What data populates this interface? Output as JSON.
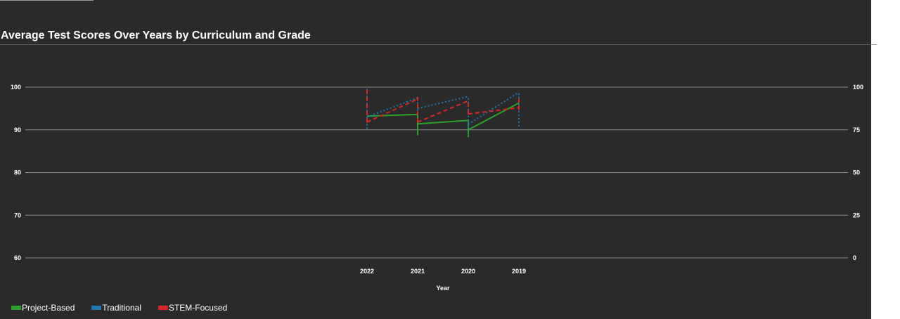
{
  "chart_data": {
    "type": "line",
    "title": "Average Test Scores Over Years by Curriculum and Grade",
    "xlabel": "Year",
    "ylabel": "",
    "y2label": "",
    "categories": [
      "2022",
      "2021",
      "2020",
      "2019"
    ],
    "ylim": [
      60,
      100
    ],
    "y2lim": [
      0,
      100
    ],
    "y_ticks": [
      "100",
      "90",
      "80",
      "70",
      "60"
    ],
    "y2_ticks": [
      "100",
      "75",
      "50",
      "25",
      "0"
    ],
    "grid": true,
    "legend_position": "bottom-left",
    "series": [
      {
        "name": "Project-Based",
        "color": "#2ca02c",
        "line_style": "solid",
        "values": [
          93.2,
          93.6,
          92.2,
          96.3
        ],
        "error_bars": [
          [
            93.2,
            93.2
          ],
          [
            88.7,
            93.6
          ],
          [
            88.3,
            92.2
          ],
          [
            96.3,
            96.3
          ]
        ],
        "segments": [
          [
            [
              0,
              93.2
            ],
            [
              1,
              93.6
            ]
          ],
          [
            [
              1,
              91.4
            ],
            [
              2,
              92.2
            ]
          ],
          [
            [
              2,
              90.0
            ],
            [
              3,
              96.3
            ]
          ]
        ]
      },
      {
        "name": "Traditional",
        "color": "#1f77b4",
        "line_style": "dotted",
        "values": [
          93.0,
          97.5,
          97.8,
          98.8
        ],
        "error_bars": [
          [
            90.2,
            100
          ],
          [
            94.5,
            97.5
          ],
          [
            90.5,
            97.8
          ],
          [
            90.8,
            98.8
          ]
        ],
        "segments": [
          [
            [
              0,
              93.0
            ],
            [
              1,
              97.5
            ]
          ],
          [
            [
              1,
              95.0
            ],
            [
              2,
              97.8
            ]
          ],
          [
            [
              2,
              91.3
            ],
            [
              3,
              98.8
            ]
          ]
        ]
      },
      {
        "name": "STEM-Focused",
        "color": "#d62728",
        "line_style": "dashed",
        "values": [
          91.8,
          97.2,
          96.8,
          95.9
        ],
        "error_bars": [
          [
            91.8,
            100
          ],
          [
            91.8,
            98.0
          ],
          [
            93.7,
            96.8
          ],
          [
            94.7,
            97.7
          ]
        ],
        "segments": [
          [
            [
              0,
              91.8
            ],
            [
              1,
              97.2
            ]
          ],
          [
            [
              1,
              91.8
            ],
            [
              2,
              96.8
            ]
          ],
          [
            [
              2,
              93.7
            ],
            [
              3,
              95.2
            ]
          ]
        ]
      }
    ]
  }
}
